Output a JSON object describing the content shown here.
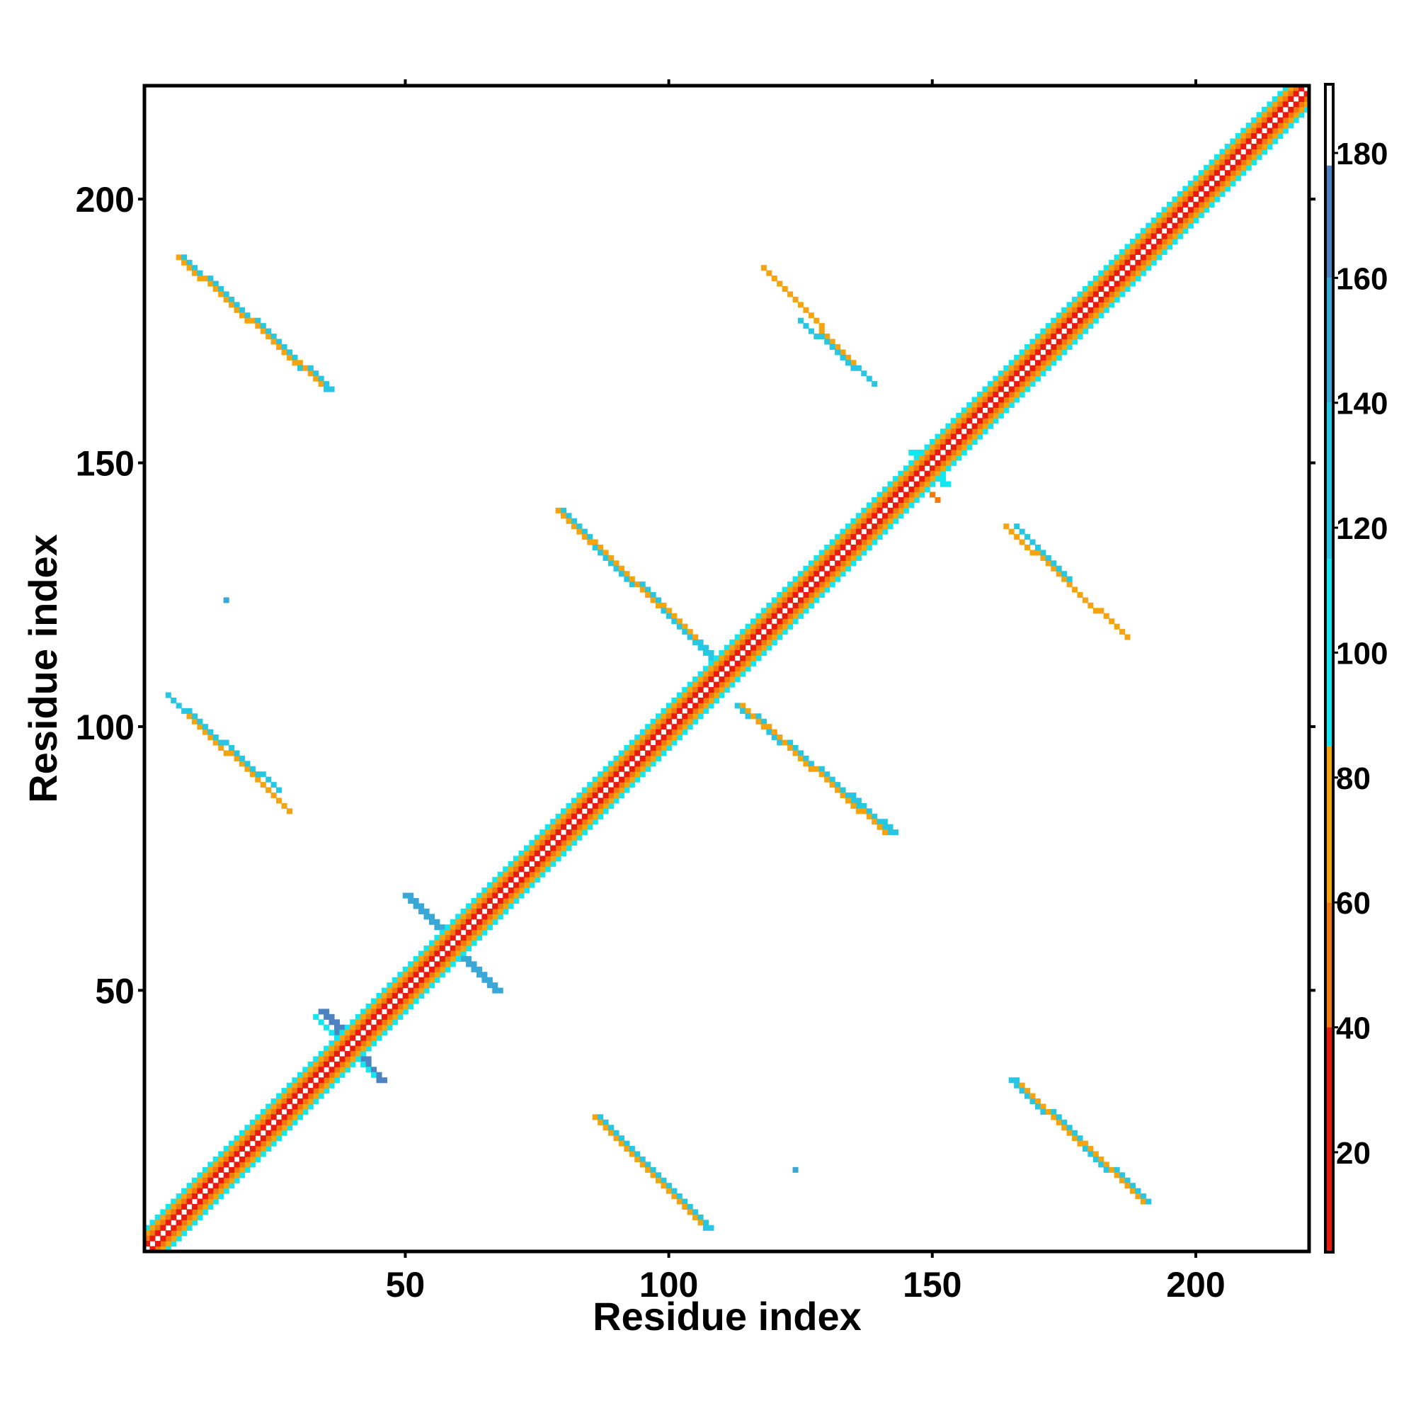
{
  "chart_data": {
    "type": "heatmap",
    "xlabel": "Residue index",
    "ylabel": "Residue index",
    "xlim": [
      1,
      221
    ],
    "ylim": [
      1,
      221
    ],
    "x_ticks": [
      50,
      100,
      150,
      200
    ],
    "y_ticks": [
      50,
      100,
      150,
      200
    ],
    "colorbar": {
      "ticks": [
        20,
        40,
        60,
        80,
        100,
        120,
        140,
        160,
        180
      ],
      "range": [
        4,
        191
      ],
      "bands": [
        {
          "from": 4,
          "to": 40,
          "color": "#e8190e"
        },
        {
          "from": 40,
          "to": 60,
          "color": "#f07a10"
        },
        {
          "from": 60,
          "to": 85,
          "color": "#f5a30f"
        },
        {
          "from": 85,
          "to": 115,
          "color": "#13e6ee"
        },
        {
          "from": 115,
          "to": 140,
          "color": "#27c6e2"
        },
        {
          "from": 140,
          "to": 160,
          "color": "#3aa8d6"
        },
        {
          "from": 160,
          "to": 178,
          "color": "#4f82c0"
        },
        {
          "from": 178,
          "to": 191,
          "color": "#ffffff"
        }
      ]
    },
    "diagonal": {
      "x_range": [
        1,
        221
      ],
      "layers": [
        {
          "offset": 0,
          "value": 190
        },
        {
          "offset": 1,
          "value": 20
        },
        {
          "offset": 2,
          "value": 48
        },
        {
          "offset": 3,
          "value": 78
        },
        {
          "offset": 4,
          "value": 100
        }
      ]
    },
    "features": [
      {
        "start": [
          34,
          46
        ],
        "end": [
          45,
          33
        ],
        "value": 165,
        "width": 2
      },
      {
        "start": [
          33,
          45
        ],
        "end": [
          44,
          34
        ],
        "value": 100,
        "width": 1
      },
      {
        "start": [
          50,
          68
        ],
        "end": [
          67,
          50
        ],
        "value": 150,
        "width": 2
      },
      {
        "start": [
          7,
          189
        ],
        "end": [
          35,
          164
        ],
        "value": 125,
        "width": 2
      },
      {
        "start": [
          7,
          189
        ],
        "end": [
          34,
          165
        ],
        "value": 75,
        "width": 1
      },
      {
        "start": [
          5,
          106
        ],
        "end": [
          28,
          84
        ],
        "value": 75,
        "width": 1
      },
      {
        "start": [
          5,
          106
        ],
        "end": [
          26,
          88
        ],
        "value": 125,
        "width": 1
      },
      {
        "start": [
          79,
          141
        ],
        "end": [
          108,
          113
        ],
        "value": 125,
        "width": 2
      },
      {
        "start": [
          79,
          141
        ],
        "end": [
          105,
          117
        ],
        "value": 75,
        "width": 1
      },
      {
        "start": [
          113,
          104
        ],
        "end": [
          142,
          80
        ],
        "value": 125,
        "width": 2
      },
      {
        "start": [
          114,
          104
        ],
        "end": [
          141,
          80
        ],
        "value": 75,
        "width": 1
      },
      {
        "start": [
          86,
          26
        ],
        "end": [
          107,
          5
        ],
        "value": 125,
        "width": 2
      },
      {
        "start": [
          86,
          26
        ],
        "end": [
          106,
          6
        ],
        "value": 75,
        "width": 1
      },
      {
        "start": [
          165,
          33
        ],
        "end": [
          190,
          10
        ],
        "value": 125,
        "width": 2
      },
      {
        "start": [
          167,
          32
        ],
        "end": [
          190,
          10
        ],
        "value": 75,
        "width": 1
      },
      {
        "start": [
          118,
          187
        ],
        "end": [
          139,
          165
        ],
        "value": 75,
        "width": 1
      },
      {
        "start": [
          125,
          177
        ],
        "end": [
          139,
          165
        ],
        "value": 115,
        "width": 1
      },
      {
        "start": [
          164,
          138
        ],
        "end": [
          187,
          117
        ],
        "value": 75,
        "width": 1
      },
      {
        "start": [
          166,
          138
        ],
        "end": [
          176,
          128
        ],
        "value": 115,
        "width": 1
      },
      {
        "start": [
          146,
          152
        ],
        "end": [
          152,
          146
        ],
        "value": 110,
        "width": 2
      },
      {
        "start": [
          146,
          148
        ],
        "end": [
          151,
          143
        ],
        "value": 40,
        "width": 1
      }
    ],
    "points": [
      {
        "x": 16,
        "y": 124,
        "value": 150
      },
      {
        "x": 124,
        "y": 16,
        "value": 150
      }
    ]
  }
}
